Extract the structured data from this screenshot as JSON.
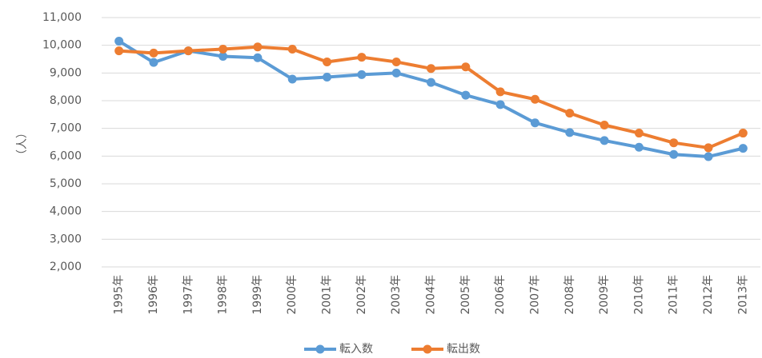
{
  "chart_data": {
    "type": "line",
    "y_label": "（人）",
    "categories": [
      "1995年",
      "1996年",
      "1997年",
      "1998年",
      "1999年",
      "2000年",
      "2001年",
      "2002年",
      "2003年",
      "2004年",
      "2005年",
      "2006年",
      "2007年",
      "2008年",
      "2009年",
      "2010年",
      "2011年",
      "2012年",
      "2013年"
    ],
    "series": [
      {
        "name": "転入数",
        "color": "#5b9bd5",
        "values": [
          10150,
          9380,
          9800,
          9600,
          9550,
          8780,
          8850,
          8940,
          9000,
          8660,
          8200,
          7860,
          7200,
          6850,
          6560,
          6320,
          6060,
          5980,
          6280
        ]
      },
      {
        "name": "転出数",
        "color": "#ed7d31",
        "values": [
          9800,
          9720,
          9800,
          9860,
          9940,
          9860,
          9400,
          9570,
          9400,
          9160,
          9220,
          8320,
          8050,
          7550,
          7120,
          6830,
          6480,
          6300,
          6830
        ]
      }
    ],
    "ylim": [
      2000,
      11000
    ],
    "yticks": [
      {
        "value": 2000,
        "label": "2,000"
      },
      {
        "value": 3000,
        "label": "3,000"
      },
      {
        "value": 4000,
        "label": "4,000"
      },
      {
        "value": 5000,
        "label": "5,000"
      },
      {
        "value": 6000,
        "label": "6,000"
      },
      {
        "value": 7000,
        "label": "7,000"
      },
      {
        "value": 8000,
        "label": "8,000"
      },
      {
        "value": 9000,
        "label": "9,000"
      },
      {
        "value": 10000,
        "label": "10,000"
      },
      {
        "value": 11000,
        "label": "11,000"
      }
    ],
    "grid": true,
    "legend": "bottom"
  }
}
